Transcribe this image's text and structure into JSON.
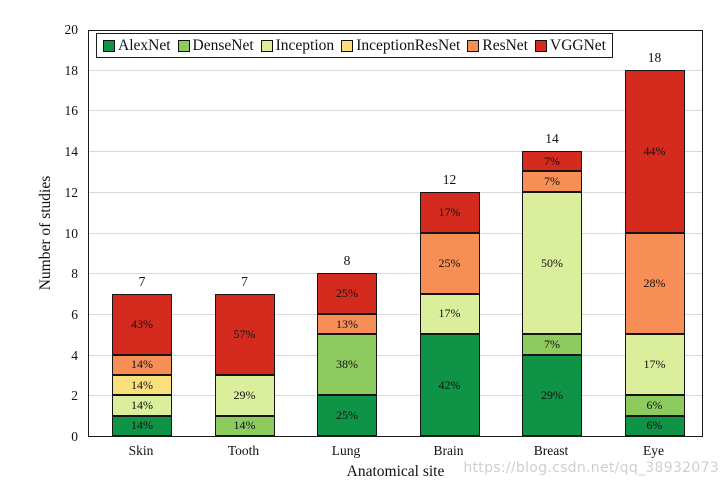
{
  "watermark_text": "https://blog.csdn.net/qq_38932073",
  "chart_data": {
    "type": "bar",
    "variant": "stacked-column",
    "title": "",
    "xlabel": "Anatomical site",
    "ylabel": "Number of studies",
    "ylim": [
      0,
      20
    ],
    "yticks": [
      "0",
      "2",
      "4",
      "6",
      "8",
      "10",
      "12",
      "14",
      "16",
      "18",
      "20"
    ],
    "grid": "horizontal",
    "gridline_color": "#dadada",
    "legend_position": "inside-top-left",
    "categories": [
      "Skin",
      "Tooth",
      "Lung",
      "Brain",
      "Breast",
      "Eye"
    ],
    "totals": [
      "7",
      "7",
      "8",
      "12",
      "14",
      "18"
    ],
    "series": [
      {
        "name": "AlexNet",
        "color": "#0F9347",
        "values": [
          1,
          0,
          2,
          5,
          4,
          1
        ],
        "pct_labels": [
          "14%",
          "",
          "25%",
          "42%",
          "29%",
          "6%"
        ]
      },
      {
        "name": "DenseNet",
        "color": "#8DCB5E",
        "values": [
          0,
          1,
          3,
          0,
          1,
          1
        ],
        "pct_labels": [
          "",
          "14%",
          "38%",
          "",
          "7%",
          "6%"
        ]
      },
      {
        "name": "Inception",
        "color": "#DAEE9B",
        "values": [
          1,
          2,
          0,
          2,
          7,
          3
        ],
        "pct_labels": [
          "14%",
          "29%",
          "",
          "17%",
          "50%",
          "17%"
        ]
      },
      {
        "name": "InceptionResNet",
        "color": "#FADF7D",
        "values": [
          1,
          0,
          0,
          0,
          0,
          0
        ],
        "pct_labels": [
          "14%",
          "",
          "",
          "",
          "",
          ""
        ]
      },
      {
        "name": "ResNet",
        "color": "#F78E55",
        "values": [
          1,
          0,
          1,
          3,
          1,
          5
        ],
        "pct_labels": [
          "14%",
          "",
          "13%",
          "25%",
          "7%",
          "28%"
        ]
      },
      {
        "name": "VGGNet",
        "color": "#D52B1F",
        "values": [
          3,
          4,
          2,
          2,
          1,
          8
        ],
        "pct_labels": [
          "43%",
          "57%",
          "25%",
          "17%",
          "7%",
          "44%"
        ]
      }
    ]
  }
}
